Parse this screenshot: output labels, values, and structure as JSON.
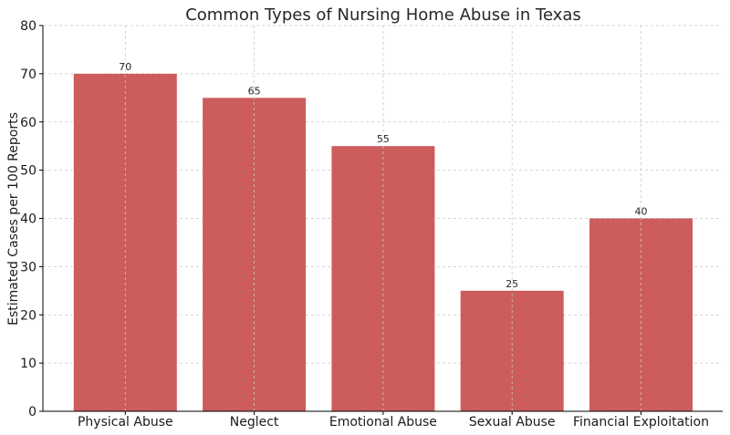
{
  "chart_data": {
    "type": "bar",
    "title": "Common Types of Nursing Home Abuse in Texas",
    "xlabel": "",
    "ylabel": "Estimated Cases per 100 Reports",
    "categories": [
      "Physical Abuse",
      "Neglect",
      "Emotional Abuse",
      "Sexual Abuse",
      "Financial Exploitation"
    ],
    "values": [
      70,
      65,
      55,
      25,
      40
    ],
    "data_labels": [
      "70",
      "65",
      "55",
      "25",
      "40"
    ],
    "ylim": [
      0,
      80
    ],
    "yticks": [
      0,
      10,
      20,
      30,
      40,
      50,
      60,
      70,
      80
    ],
    "grid": true,
    "bar_color": "#cd5c5c"
  }
}
